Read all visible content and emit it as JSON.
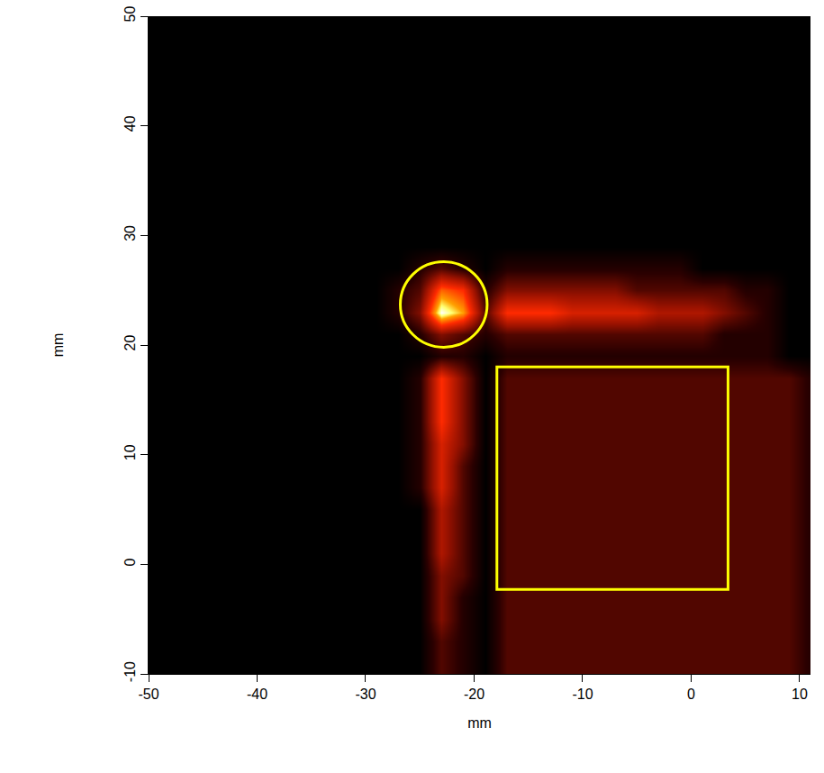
{
  "chart_data": {
    "type": "heatmap",
    "x_label": "mm",
    "y_label": "mm",
    "x": [
      -49,
      -47,
      -45,
      -43,
      -41,
      -39,
      -37,
      -35,
      -33,
      -31,
      -29,
      -27,
      -25,
      -23,
      -21,
      -19,
      -17,
      -15,
      -13,
      -11,
      -9,
      -7,
      -5,
      -3,
      -1,
      1,
      3,
      5,
      7,
      9,
      11
    ],
    "y": [
      -9,
      -7,
      -5,
      -3,
      -1,
      1,
      3,
      5,
      7,
      9,
      11,
      13,
      15,
      17,
      19,
      21,
      23,
      25,
      27,
      29,
      31,
      33,
      35,
      37,
      39,
      41,
      43,
      45,
      47,
      49
    ],
    "cells": [
      [
        0,
        0,
        0,
        0,
        0,
        0,
        0,
        0,
        0,
        0,
        0,
        0,
        0,
        2,
        1,
        0,
        2,
        2,
        2,
        2,
        2,
        2,
        2,
        2,
        2,
        2,
        2,
        2,
        2,
        2,
        1
      ],
      [
        0,
        0,
        0,
        0,
        0,
        0,
        0,
        0,
        0,
        0,
        0,
        0,
        0,
        2,
        1,
        0,
        2,
        2,
        2,
        2,
        2,
        2,
        2,
        2,
        2,
        2,
        2,
        2,
        2,
        2,
        1
      ],
      [
        0,
        0,
        0,
        0,
        0,
        0,
        0,
        0,
        0,
        0,
        0,
        0,
        0,
        3,
        1,
        0,
        2,
        2,
        2,
        2,
        2,
        2,
        2,
        2,
        2,
        2,
        2,
        2,
        2,
        2,
        1
      ],
      [
        0,
        0,
        0,
        0,
        0,
        0,
        0,
        0,
        0,
        0,
        0,
        0,
        0,
        3,
        1,
        0,
        2,
        2,
        2,
        2,
        2,
        2,
        2,
        2,
        2,
        2,
        2,
        2,
        2,
        2,
        1
      ],
      [
        0,
        0,
        0,
        0,
        0,
        0,
        0,
        0,
        0,
        0,
        0,
        0,
        0,
        3,
        2,
        0,
        2,
        2,
        2,
        2,
        2,
        2,
        2,
        2,
        2,
        2,
        2,
        2,
        2,
        2,
        1
      ],
      [
        0,
        0,
        0,
        0,
        0,
        0,
        0,
        0,
        0,
        0,
        0,
        0,
        0,
        4,
        2,
        0,
        2,
        2,
        2,
        2,
        2,
        2,
        2,
        2,
        2,
        2,
        2,
        2,
        2,
        2,
        1
      ],
      [
        0,
        0,
        0,
        0,
        0,
        0,
        0,
        0,
        0,
        0,
        0,
        0,
        0,
        4,
        2,
        0,
        2,
        2,
        2,
        2,
        2,
        2,
        2,
        2,
        2,
        2,
        2,
        2,
        2,
        2,
        1
      ],
      [
        0,
        0,
        0,
        0,
        0,
        0,
        0,
        0,
        0,
        0,
        0,
        0,
        0,
        4,
        2,
        0,
        2,
        2,
        2,
        2,
        2,
        2,
        2,
        2,
        2,
        2,
        2,
        2,
        2,
        2,
        1
      ],
      [
        0,
        0,
        0,
        0,
        0,
        0,
        0,
        0,
        0,
        0,
        0,
        0,
        1,
        5,
        2,
        0,
        2,
        2,
        2,
        2,
        2,
        2,
        2,
        2,
        2,
        2,
        2,
        2,
        2,
        2,
        1
      ],
      [
        0,
        0,
        0,
        0,
        0,
        0,
        0,
        0,
        0,
        0,
        0,
        0,
        1,
        5,
        2,
        0,
        2,
        2,
        2,
        2,
        2,
        2,
        2,
        2,
        2,
        2,
        2,
        2,
        2,
        2,
        1
      ],
      [
        0,
        0,
        0,
        0,
        0,
        0,
        0,
        0,
        0,
        0,
        0,
        0,
        1,
        5,
        3,
        0,
        2,
        2,
        2,
        2,
        2,
        2,
        2,
        2,
        2,
        2,
        2,
        2,
        2,
        2,
        1
      ],
      [
        0,
        0,
        0,
        0,
        0,
        0,
        0,
        0,
        0,
        0,
        0,
        0,
        1,
        6,
        3,
        0,
        2,
        2,
        2,
        2,
        2,
        2,
        2,
        2,
        2,
        2,
        2,
        2,
        2,
        2,
        1
      ],
      [
        0,
        0,
        0,
        0,
        0,
        0,
        0,
        0,
        0,
        0,
        0,
        0,
        1,
        6,
        3,
        0,
        2,
        2,
        2,
        2,
        2,
        2,
        2,
        2,
        2,
        2,
        2,
        2,
        2,
        2,
        1
      ],
      [
        0,
        0,
        0,
        0,
        0,
        0,
        0,
        0,
        0,
        0,
        0,
        0,
        1,
        6,
        3,
        0,
        2,
        2,
        2,
        2,
        2,
        2,
        2,
        2,
        2,
        2,
        2,
        2,
        2,
        2,
        1
      ],
      [
        0,
        0,
        0,
        0,
        0,
        0,
        0,
        0,
        0,
        0,
        0,
        0,
        0,
        1,
        1,
        0,
        1,
        1,
        1,
        1,
        1,
        1,
        1,
        1,
        1,
        1,
        1,
        1,
        1,
        0,
        0
      ],
      [
        0,
        0,
        0,
        0,
        0,
        0,
        0,
        0,
        0,
        0,
        0,
        0,
        1,
        3,
        2,
        1,
        2,
        2,
        2,
        2,
        2,
        2,
        2,
        2,
        2,
        2,
        1,
        1,
        1,
        0,
        0
      ],
      [
        0,
        0,
        0,
        0,
        0,
        0,
        0,
        0,
        0,
        0,
        0,
        1,
        3,
        10,
        8,
        2,
        6,
        6,
        6,
        5,
        5,
        5,
        5,
        4,
        4,
        4,
        3,
        2,
        1,
        0,
        0
      ],
      [
        0,
        0,
        0,
        0,
        0,
        0,
        0,
        0,
        0,
        0,
        0,
        1,
        2,
        7,
        6,
        1,
        3,
        3,
        3,
        3,
        3,
        3,
        2,
        2,
        2,
        2,
        2,
        1,
        1,
        0,
        0
      ],
      [
        0,
        0,
        0,
        0,
        0,
        0,
        0,
        0,
        0,
        0,
        0,
        0,
        1,
        2,
        1,
        0,
        1,
        1,
        1,
        1,
        1,
        1,
        1,
        1,
        1,
        0,
        0,
        0,
        0,
        0,
        0
      ],
      [
        0,
        0,
        0,
        0,
        0,
        0,
        0,
        0,
        0,
        0,
        0,
        0,
        0,
        0,
        0,
        0,
        0,
        0,
        0,
        0,
        0,
        0,
        0,
        0,
        0,
        0,
        0,
        0,
        0,
        0,
        0
      ],
      [
        0,
        0,
        0,
        0,
        0,
        0,
        0,
        0,
        0,
        0,
        0,
        0,
        0,
        0,
        0,
        0,
        0,
        0,
        0,
        0,
        0,
        0,
        0,
        0,
        0,
        0,
        0,
        0,
        0,
        0,
        0
      ],
      [
        0,
        0,
        0,
        0,
        0,
        0,
        0,
        0,
        0,
        0,
        0,
        0,
        0,
        0,
        0,
        0,
        0,
        0,
        0,
        0,
        0,
        0,
        0,
        0,
        0,
        0,
        0,
        0,
        0,
        0,
        0
      ],
      [
        0,
        0,
        0,
        0,
        0,
        0,
        0,
        0,
        0,
        0,
        0,
        0,
        0,
        0,
        0,
        0,
        0,
        0,
        0,
        0,
        0,
        0,
        0,
        0,
        0,
        0,
        0,
        0,
        0,
        0,
        0
      ],
      [
        0,
        0,
        0,
        0,
        0,
        0,
        0,
        0,
        0,
        0,
        0,
        0,
        0,
        0,
        0,
        0,
        0,
        0,
        0,
        0,
        0,
        0,
        0,
        0,
        0,
        0,
        0,
        0,
        0,
        0,
        0
      ],
      [
        0,
        0,
        0,
        0,
        0,
        0,
        0,
        0,
        0,
        0,
        0,
        0,
        0,
        0,
        0,
        0,
        0,
        0,
        0,
        0,
        0,
        0,
        0,
        0,
        0,
        0,
        0,
        0,
        0,
        0,
        0
      ],
      [
        0,
        0,
        0,
        0,
        0,
        0,
        0,
        0,
        0,
        0,
        0,
        0,
        0,
        0,
        0,
        0,
        0,
        0,
        0,
        0,
        0,
        0,
        0,
        0,
        0,
        0,
        0,
        0,
        0,
        0,
        0
      ],
      [
        0,
        0,
        0,
        0,
        0,
        0,
        0,
        0,
        0,
        0,
        0,
        0,
        0,
        0,
        0,
        0,
        0,
        0,
        0,
        0,
        0,
        0,
        0,
        0,
        0,
        0,
        0,
        0,
        0,
        0,
        0
      ],
      [
        0,
        0,
        0,
        0,
        0,
        0,
        0,
        0,
        0,
        0,
        0,
        0,
        0,
        0,
        0,
        0,
        0,
        0,
        0,
        0,
        0,
        0,
        0,
        0,
        0,
        0,
        0,
        0,
        0,
        0,
        0
      ],
      [
        0,
        0,
        0,
        0,
        0,
        0,
        0,
        0,
        0,
        0,
        0,
        0,
        0,
        0,
        0,
        0,
        0,
        0,
        0,
        0,
        0,
        0,
        0,
        0,
        0,
        0,
        0,
        0,
        0,
        0,
        0
      ],
      [
        0,
        0,
        0,
        0,
        0,
        0,
        0,
        0,
        0,
        0,
        0,
        0,
        0,
        0,
        0,
        0,
        0,
        0,
        0,
        0,
        0,
        0,
        0,
        0,
        0,
        0,
        0,
        0,
        0,
        0,
        0
      ]
    ],
    "zlim": [
      0,
      10
    ],
    "xlim": [
      -50,
      11
    ],
    "ylim": [
      -10,
      50
    ],
    "xticks": [
      -50,
      -40,
      -30,
      -20,
      -10,
      0,
      10
    ],
    "yticks": [
      -10,
      0,
      10,
      20,
      30,
      40,
      50
    ],
    "grid": false,
    "shapes": [
      {
        "type": "circle",
        "x": [
          -26.8,
          -18.8
        ],
        "y": [
          19.8,
          27.6
        ],
        "color": "#ffff00"
      },
      {
        "type": "rect",
        "x": [
          -17.9,
          3.4
        ],
        "y": [
          -2.3,
          18.0
        ],
        "color": "#ffff00"
      }
    ]
  }
}
